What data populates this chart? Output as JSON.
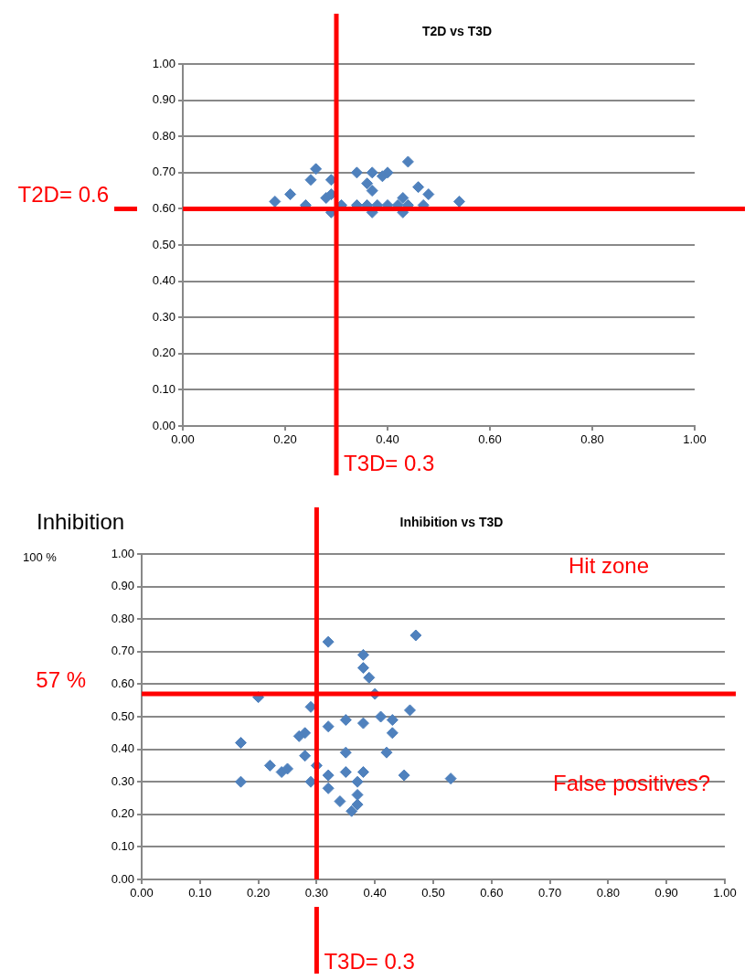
{
  "chart_data": [
    {
      "type": "scatter",
      "title": "T2D vs T3D",
      "marker": "diamond",
      "grid": "y",
      "legend": false,
      "xlim": [
        0,
        1
      ],
      "ylim": [
        0,
        1
      ],
      "xticks": [
        {
          "value": 0,
          "label": "0.00"
        },
        {
          "value": 0.2,
          "label": "0.20"
        },
        {
          "value": 0.4,
          "label": "0.40"
        },
        {
          "value": 0.6,
          "label": "0.60"
        },
        {
          "value": 0.8,
          "label": "0.80"
        },
        {
          "value": 1,
          "label": "1.00"
        }
      ],
      "yticks": [
        {
          "value": 0,
          "label": "0.00"
        },
        {
          "value": 0.1,
          "label": "0.10"
        },
        {
          "value": 0.2,
          "label": "0.20"
        },
        {
          "value": 0.3,
          "label": "0.30"
        },
        {
          "value": 0.4,
          "label": "0.40"
        },
        {
          "value": 0.5,
          "label": "0.50"
        },
        {
          "value": 0.6,
          "label": "0.60"
        },
        {
          "value": 0.7,
          "label": "0.70"
        },
        {
          "value": 0.8,
          "label": "0.80"
        },
        {
          "value": 0.9,
          "label": "0.90"
        },
        {
          "value": 1,
          "label": "1.00"
        }
      ],
      "series": [
        {
          "color": "#4f81bd",
          "x": [
            0.18,
            0.21,
            0.24,
            0.26,
            0.25,
            0.29,
            0.28,
            0.29,
            0.34,
            0.36,
            0.37,
            0.4,
            0.39,
            0.44,
            0.46,
            0.48,
            0.43,
            0.54,
            0.34,
            0.36,
            0.38,
            0.4,
            0.42,
            0.44,
            0.47,
            0.29,
            0.37,
            0.43,
            0.31,
            0.37
          ],
          "values": [
            0.62,
            0.64,
            0.61,
            0.71,
            0.68,
            0.68,
            0.63,
            0.64,
            0.7,
            0.67,
            0.65,
            0.7,
            0.69,
            0.73,
            0.66,
            0.64,
            0.63,
            0.62,
            0.61,
            0.61,
            0.61,
            0.61,
            0.61,
            0.61,
            0.61,
            0.59,
            0.59,
            0.59,
            0.61,
            0.7
          ]
        }
      ],
      "ref_lines": [
        {
          "axis": "y",
          "value": 0.6,
          "label": "T2D= 0.6",
          "color": "#ff0000"
        },
        {
          "axis": "x",
          "value": 0.3,
          "label": "T3D= 0.3",
          "color": "#ff0000"
        }
      ]
    },
    {
      "type": "scatter",
      "title": "Inhibition vs T3D",
      "ylabel": "Inhibition",
      "marker": "diamond",
      "grid": "y",
      "legend": false,
      "xlim": [
        0,
        1
      ],
      "ylim": [
        0,
        1
      ],
      "xticks": [
        {
          "value": 0,
          "label": "0.00"
        },
        {
          "value": 0.1,
          "label": "0.10"
        },
        {
          "value": 0.2,
          "label": "0.20"
        },
        {
          "value": 0.3,
          "label": "0.30"
        },
        {
          "value": 0.4,
          "label": "0.40"
        },
        {
          "value": 0.5,
          "label": "0.50"
        },
        {
          "value": 0.6,
          "label": "0.60"
        },
        {
          "value": 0.7,
          "label": "0.70"
        },
        {
          "value": 0.8,
          "label": "0.80"
        },
        {
          "value": 0.9,
          "label": "0.90"
        },
        {
          "value": 1,
          "label": "1.00"
        }
      ],
      "yticks": [
        {
          "value": 0,
          "label": "0.00"
        },
        {
          "value": 0.1,
          "label": "0.10"
        },
        {
          "value": 0.2,
          "label": "0.20"
        },
        {
          "value": 0.3,
          "label": "0.30"
        },
        {
          "value": 0.4,
          "label": "0.40"
        },
        {
          "value": 0.5,
          "label": "0.50"
        },
        {
          "value": 0.6,
          "label": "0.60"
        },
        {
          "value": 0.7,
          "label": "0.70"
        },
        {
          "value": 0.8,
          "label": "0.80"
        },
        {
          "value": 0.9,
          "label": "0.90"
        },
        {
          "value": 1,
          "label": "1.00"
        }
      ],
      "series": [
        {
          "color": "#4f81bd",
          "x": [
            0.47,
            0.32,
            0.38,
            0.38,
            0.39,
            0.2,
            0.4,
            0.29,
            0.46,
            0.32,
            0.35,
            0.38,
            0.41,
            0.43,
            0.43,
            0.17,
            0.27,
            0.28,
            0.28,
            0.35,
            0.42,
            0.3,
            0.22,
            0.24,
            0.25,
            0.17,
            0.29,
            0.32,
            0.35,
            0.38,
            0.37,
            0.45,
            0.53,
            0.32,
            0.37,
            0.34,
            0.37,
            0.36
          ],
          "values": [
            0.75,
            0.73,
            0.69,
            0.65,
            0.62,
            0.56,
            0.57,
            0.53,
            0.52,
            0.47,
            0.49,
            0.48,
            0.5,
            0.49,
            0.45,
            0.42,
            0.44,
            0.45,
            0.38,
            0.39,
            0.39,
            0.35,
            0.35,
            0.33,
            0.34,
            0.3,
            0.3,
            0.32,
            0.33,
            0.33,
            0.3,
            0.32,
            0.31,
            0.28,
            0.26,
            0.24,
            0.23,
            0.21
          ]
        }
      ],
      "ref_lines": [
        {
          "axis": "y",
          "value": 0.57,
          "label": "57 %",
          "color": "#ff0000"
        },
        {
          "axis": "x",
          "value": 0.3,
          "label": "T3D= 0.3",
          "color": "#ff0000"
        }
      ],
      "annotations": [
        "100 %",
        "Hit zone",
        "False positives?"
      ]
    }
  ]
}
